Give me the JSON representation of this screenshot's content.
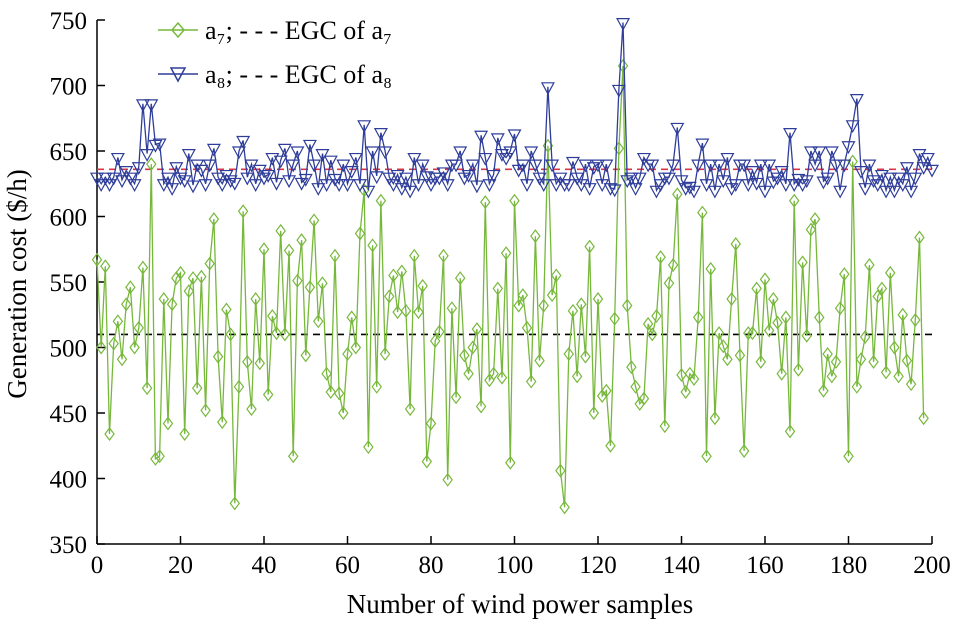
{
  "chart_data": {
    "type": "line",
    "title": "",
    "xlabel": "Number of wind power samples",
    "ylabel": "Generation cost ($/h)",
    "xlim": [
      0,
      200
    ],
    "ylim": [
      350,
      750
    ],
    "x_ticks": [
      "0",
      "20",
      "40",
      "60",
      "80",
      "100",
      "120",
      "140",
      "160",
      "180",
      "200"
    ],
    "y_ticks": [
      "350",
      "400",
      "450",
      "500",
      "550",
      "600",
      "650",
      "700",
      "750"
    ],
    "grid": false,
    "legend_position": "top-left",
    "legend": [
      {
        "series": "a₇",
        "label": "a₇; - - - EGC of a₇"
      },
      {
        "series": "a₈",
        "label": "a₈; - - - EGC of a₈"
      }
    ],
    "series": [
      {
        "name": "a₇",
        "color": "#77b83c",
        "marker": "diamond",
        "x_start": 0,
        "x_step": 1,
        "values": [
          567,
          500,
          562,
          434,
          503,
          520,
          491,
          533,
          546,
          500,
          515,
          561,
          469,
          640,
          415,
          417,
          537,
          442,
          533,
          553,
          557,
          434,
          543,
          553,
          469,
          554,
          452,
          564,
          598,
          493,
          443,
          529,
          510,
          381,
          470,
          604,
          489,
          453,
          537,
          488,
          575,
          464,
          524,
          511,
          589,
          510,
          574,
          417,
          551,
          582,
          494,
          546,
          597,
          520,
          549,
          480,
          466,
          570,
          465,
          450,
          495,
          523,
          500,
          587,
          620,
          424,
          578,
          470,
          612,
          495,
          539,
          555,
          527,
          558,
          528,
          453,
          570,
          527,
          547,
          413,
          442,
          505,
          512,
          570,
          399,
          530,
          462,
          553,
          494,
          480,
          500,
          514,
          455,
          611,
          475,
          480,
          545,
          477,
          572,
          412,
          612,
          532,
          540,
          515,
          474,
          585,
          490,
          532,
          654,
          540,
          555,
          406,
          378,
          495,
          528,
          478,
          533,
          493,
          577,
          450,
          537,
          463,
          467,
          425,
          522,
          652,
          715,
          532,
          485,
          470,
          457,
          461,
          518,
          510,
          524,
          569,
          440,
          549,
          563,
          617,
          479,
          466,
          480,
          476,
          523,
          603,
          417,
          560,
          446,
          511,
          501,
          491,
          537,
          579,
          494,
          421,
          511,
          511,
          545,
          489,
          552,
          513,
          537,
          519,
          480,
          523,
          436,
          612,
          483,
          565,
          509,
          590,
          598,
          523,
          467,
          495,
          478,
          489,
          530,
          556,
          417,
          642,
          470,
          491,
          508,
          563,
          489,
          539,
          545,
          481,
          557,
          500,
          478,
          525,
          490,
          472,
          521,
          584,
          446
        ]
      },
      {
        "name": "a₈",
        "color": "#2e3d9a",
        "marker": "triangle-down",
        "x_start": 0,
        "x_step": 1,
        "values": [
          630,
          625,
          630,
          625,
          630,
          645,
          628,
          635,
          630,
          625,
          638,
          686,
          648,
          686,
          655,
          656,
          625,
          630,
          622,
          638,
          630,
          628,
          648,
          624,
          640,
          636,
          625,
          640,
          652,
          630,
          625,
          632,
          628,
          626,
          650,
          658,
          630,
          640,
          625,
          636,
          630,
          632,
          645,
          626,
          643,
          652,
          628,
          640,
          650,
          626,
          629,
          655,
          640,
          622,
          648,
          625,
          643,
          629,
          625,
          640,
          625,
          635,
          645,
          625,
          670,
          620,
          650,
          631,
          664,
          650,
          630,
          625,
          632,
          622,
          630,
          620,
          645,
          625,
          640,
          631,
          625,
          630,
          630,
          634,
          625,
          640,
          640,
          650,
          630,
          632,
          640,
          624,
          662,
          645,
          625,
          632,
          660,
          648,
          645,
          650,
          663,
          636,
          640,
          625,
          650,
          640,
          630,
          625,
          699,
          640,
          625,
          630,
          625,
          625,
          642,
          630,
          625,
          640,
          622,
          638,
          640,
          625,
          640,
          622,
          621,
          697,
          748,
          628,
          630,
          622,
          630,
          645,
          640,
          640,
          620,
          625,
          630,
          630,
          640,
          668,
          628,
          622,
          623,
          620,
          640,
          656,
          625,
          640,
          620,
          640,
          628,
          645,
          622,
          625,
          640,
          640,
          625,
          635,
          626,
          640,
          620,
          640,
          627,
          630,
          635,
          625,
          664,
          625,
          629,
          625,
          628,
          650,
          640,
          650,
          627,
          630,
          650,
          640,
          620,
          640,
          654,
          670,
          690,
          635,
          622,
          640,
          628,
          625,
          632,
          620,
          630,
          620,
          630,
          625,
          638,
          620,
          630,
          648,
          638,
          645,
          636
        ]
      },
      {
        "name": "EGC of a₇",
        "color": "#000000",
        "style": "dashed",
        "values": [
          510
        ]
      },
      {
        "name": "EGC of a₈",
        "color": "#d9344a",
        "style": "dashed",
        "values": [
          636
        ]
      }
    ]
  }
}
